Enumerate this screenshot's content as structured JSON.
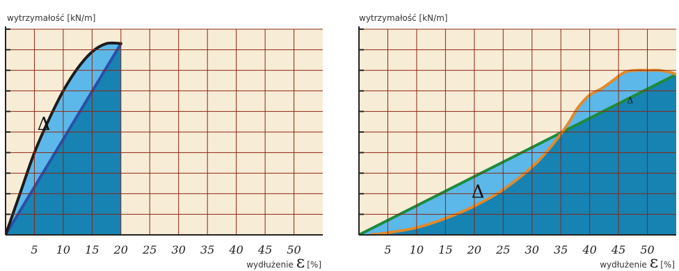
{
  "colors": {
    "background": "#f7ecd6",
    "grid": "#8b2510",
    "dark_fill": "#1683b3",
    "light_fill": "#5cb8e8",
    "curve_left": "#1b1b1b",
    "line_left": "#2a4fa8",
    "curve_right": "#e08a2c",
    "line_right": "#1f8a3c"
  },
  "chart_data": [
    {
      "type": "line",
      "ylabel": "wytrzymałość [kN/m]",
      "xlabel": "wydłużenie",
      "xlabel_symbol": "ε",
      "xlabel_unit": "[%]",
      "xlim": [
        0,
        55
      ],
      "ylim": [
        0,
        10
      ],
      "x_ticks": [
        5,
        10,
        15,
        20,
        25,
        30,
        35,
        40,
        45,
        50
      ],
      "grid": true,
      "area_label": "Δ",
      "series": [
        {
          "role": "curve",
          "color": "#1b1b1b",
          "x": [
            0,
            2.5,
            5,
            7.5,
            10,
            12.5,
            15,
            17.5,
            20
          ],
          "y": [
            0,
            2.0,
            4.0,
            5.6,
            7.0,
            8.1,
            8.9,
            9.3,
            9.3
          ]
        },
        {
          "role": "line",
          "color": "#2a4fa8",
          "x": [
            0,
            20
          ],
          "y": [
            0,
            9.3
          ]
        }
      ]
    },
    {
      "type": "line",
      "ylabel": "wytrzymałość [kN/m]",
      "xlabel": "wydłużenie",
      "xlabel_symbol": "ε",
      "xlabel_unit": "[%]",
      "xlim": [
        0,
        55
      ],
      "ylim": [
        0,
        10
      ],
      "x_ticks": [
        5,
        10,
        15,
        20,
        25,
        30,
        35,
        40,
        45,
        50
      ],
      "grid": true,
      "area_label": "Δ",
      "series": [
        {
          "role": "curve",
          "color": "#e08a2c",
          "x": [
            2,
            5,
            10,
            15,
            20,
            25,
            30,
            33,
            36,
            38,
            40,
            42,
            44,
            46,
            48,
            50,
            52,
            54,
            55
          ],
          "y": [
            0,
            0.1,
            0.35,
            0.8,
            1.4,
            2.2,
            3.3,
            4.2,
            5.3,
            6.2,
            6.8,
            7.1,
            7.5,
            7.9,
            8.0,
            8.0,
            8.0,
            7.9,
            7.8
          ]
        },
        {
          "role": "line",
          "color": "#1f8a3c",
          "x": [
            0,
            55
          ],
          "y": [
            0,
            7.8
          ]
        }
      ]
    }
  ]
}
